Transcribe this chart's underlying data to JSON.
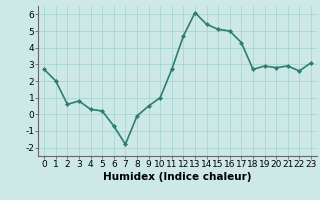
{
  "x": [
    0,
    1,
    2,
    3,
    4,
    5,
    6,
    7,
    8,
    9,
    10,
    11,
    12,
    13,
    14,
    15,
    16,
    17,
    18,
    19,
    20,
    21,
    22,
    23
  ],
  "y": [
    2.7,
    2.0,
    0.6,
    0.8,
    0.3,
    0.2,
    -0.7,
    -1.8,
    -0.1,
    0.5,
    1.0,
    2.7,
    4.7,
    6.1,
    5.4,
    5.1,
    5.0,
    4.3,
    2.7,
    2.9,
    2.8,
    2.9,
    2.6,
    3.1
  ],
  "xlabel": "Humidex (Indice chaleur)",
  "ylim": [
    -2.5,
    6.5
  ],
  "xlim": [
    -0.5,
    23.5
  ],
  "yticks": [
    -2,
    -1,
    0,
    1,
    2,
    3,
    4,
    5,
    6
  ],
  "xticks": [
    0,
    1,
    2,
    3,
    4,
    5,
    6,
    7,
    8,
    9,
    10,
    11,
    12,
    13,
    14,
    15,
    16,
    17,
    18,
    19,
    20,
    21,
    22,
    23
  ],
  "line_color": "#2e7d6e",
  "marker": "D",
  "marker_size": 2.0,
  "bg_color": "#cce9e7",
  "grid_color": "#aad4d0",
  "xlabel_fontsize": 7.5,
  "tick_fontsize": 6.5,
  "line_width": 1.2
}
